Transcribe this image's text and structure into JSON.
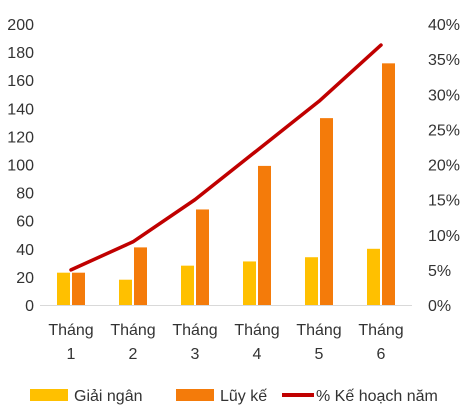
{
  "chart_data": {
    "type": "bar",
    "categories": [
      [
        "Tháng",
        "1"
      ],
      [
        "Tháng",
        "2"
      ],
      [
        "Tháng",
        "3"
      ],
      [
        "Tháng",
        "4"
      ],
      [
        "Tháng",
        "5"
      ],
      [
        "Tháng",
        "6"
      ]
    ],
    "series": [
      {
        "name": "Giải ngân",
        "type": "bar",
        "axis": "left",
        "color": "#FFC000",
        "values": [
          23,
          18,
          28,
          31,
          34,
          40
        ]
      },
      {
        "name": "Lũy kế",
        "type": "bar",
        "axis": "left",
        "color": "#F47B0A",
        "values": [
          23,
          41,
          68,
          99,
          133,
          172
        ]
      },
      {
        "name": "% Kế hoạch năm",
        "type": "line",
        "axis": "right",
        "color": "#C00000",
        "values": [
          0.05,
          0.09,
          0.15,
          0.22,
          0.29,
          0.37
        ]
      }
    ],
    "y_left": {
      "ylim": [
        0,
        200
      ],
      "ticks": [
        "0",
        "20",
        "40",
        "60",
        "80",
        "100",
        "120",
        "140",
        "160",
        "180",
        "200"
      ]
    },
    "y_right": {
      "ylim": [
        0,
        0.4
      ],
      "ticks": [
        "0%",
        "5%",
        "10%",
        "15%",
        "20%",
        "25%",
        "30%",
        "35%",
        "40%"
      ]
    },
    "grid": false,
    "legend_position": "bottom"
  }
}
